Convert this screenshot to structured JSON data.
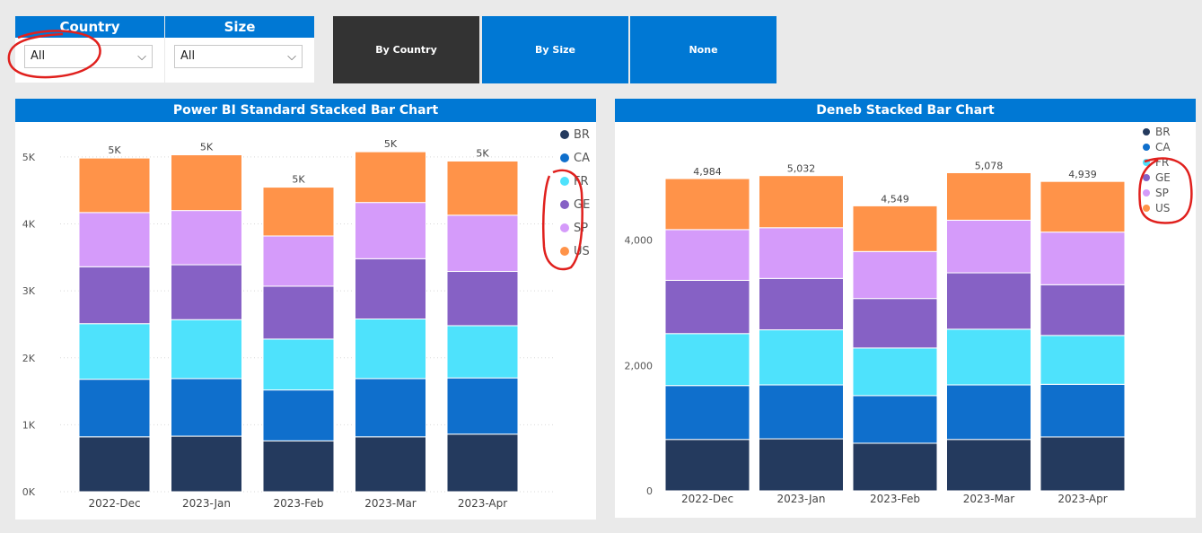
{
  "slicers": [
    {
      "title": "Country",
      "value": "All"
    },
    {
      "title": "Size",
      "value": "All"
    }
  ],
  "buttons": [
    {
      "label": "By Country",
      "color": "#333333"
    },
    {
      "label": "By Size",
      "color": "#0078d4"
    },
    {
      "label": "None",
      "color": "#0078d4"
    }
  ],
  "colors": {
    "accent": "#0078d4",
    "annotation": "#e0201d"
  },
  "chart_data": [
    {
      "type": "bar",
      "stacked": true,
      "title": "Power BI Standard Stacked Bar Chart",
      "categories": [
        "2022-Dec",
        "2023-Jan",
        "2023-Feb",
        "2023-Mar",
        "2023-Apr"
      ],
      "series": [
        {
          "name": "BR",
          "color": "#243a5e",
          "values": [
            820,
            830,
            760,
            820,
            860
          ]
        },
        {
          "name": "CA",
          "color": "#0f6fcc",
          "values": [
            860,
            860,
            760,
            870,
            840
          ]
        },
        {
          "name": "FR",
          "color": "#4ee2fc",
          "values": [
            830,
            880,
            760,
            890,
            780
          ]
        },
        {
          "name": "GE",
          "color": "#8661c5",
          "values": [
            850,
            820,
            790,
            900,
            810
          ]
        },
        {
          "name": "SP",
          "color": "#d59bfa",
          "values": [
            810,
            810,
            750,
            840,
            840
          ]
        },
        {
          "name": "US",
          "color": "#ff9349",
          "values": [
            814,
            832,
            729,
            758,
            809
          ]
        }
      ],
      "totals_labels": [
        "5K",
        "5K",
        "5K",
        "5K",
        "5K"
      ],
      "ylim": [
        0,
        5200
      ],
      "yticks": [
        0,
        1000,
        2000,
        3000,
        4000,
        5000
      ],
      "ytick_labels": [
        "0K",
        "1K",
        "2K",
        "3K",
        "4K",
        "5K"
      ],
      "grid": true,
      "legend": "right"
    },
    {
      "type": "bar",
      "stacked": true,
      "title": "Deneb Stacked Bar Chart",
      "categories": [
        "2022-Dec",
        "2023-Jan",
        "2023-Feb",
        "2023-Mar",
        "2023-Apr"
      ],
      "series": [
        {
          "name": "BR",
          "color": "#243a5e",
          "values": [
            820,
            830,
            760,
            820,
            860
          ]
        },
        {
          "name": "CA",
          "color": "#0f6fcc",
          "values": [
            860,
            860,
            760,
            870,
            840
          ]
        },
        {
          "name": "FR",
          "color": "#4ee2fc",
          "values": [
            830,
            880,
            760,
            890,
            780
          ]
        },
        {
          "name": "GE",
          "color": "#8661c5",
          "values": [
            850,
            820,
            790,
            900,
            810
          ]
        },
        {
          "name": "SP",
          "color": "#d59bfa",
          "values": [
            810,
            810,
            750,
            840,
            840
          ]
        },
        {
          "name": "US",
          "color": "#ff9349",
          "values": [
            814,
            832,
            729,
            758,
            809
          ]
        }
      ],
      "totals_labels": [
        "4,984",
        "5,032",
        "4,549",
        "5,078",
        "4,939"
      ],
      "ylim": [
        0,
        5400
      ],
      "yticks": [
        0,
        2000,
        4000
      ],
      "ytick_labels": [
        "0",
        "2,000",
        "4,000"
      ],
      "grid": false,
      "legend": "top-right"
    }
  ]
}
